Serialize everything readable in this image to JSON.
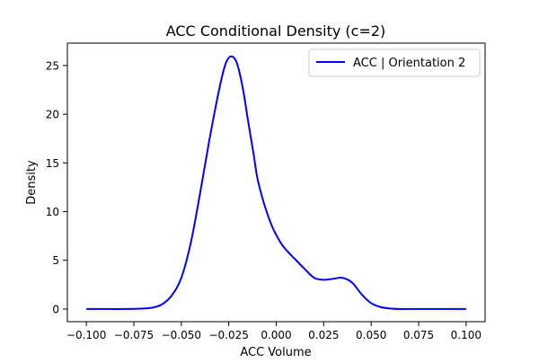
{
  "chart_data": {
    "type": "line",
    "title": "ACC Conditional Density (c=2)",
    "xlabel": "ACC Volume",
    "ylabel": "Density",
    "xlim": [
      -0.11,
      0.11
    ],
    "ylim": [
      -1.3,
      27.3
    ],
    "x_ticks": [
      -0.1,
      -0.075,
      -0.05,
      -0.025,
      0.0,
      0.025,
      0.05,
      0.075,
      0.1
    ],
    "x_tick_labels": [
      "−0.100",
      "−0.075",
      "−0.050",
      "−0.025",
      "0.000",
      "0.025",
      "0.050",
      "0.075",
      "0.100"
    ],
    "y_ticks": [
      0,
      5,
      10,
      15,
      20,
      25
    ],
    "y_tick_labels": [
      "0",
      "5",
      "10",
      "15",
      "20",
      "25"
    ],
    "grid": false,
    "legend_placement": "top-right",
    "series": [
      {
        "name": "ACC | Orientation 2",
        "color": "#0000ff",
        "x": [
          -0.1,
          -0.09,
          -0.08,
          -0.07,
          -0.065,
          -0.06,
          -0.055,
          -0.05,
          -0.045,
          -0.04,
          -0.035,
          -0.03,
          -0.027,
          -0.025,
          -0.023,
          -0.021,
          -0.019,
          -0.017,
          -0.015,
          -0.012,
          -0.01,
          -0.007,
          -0.004,
          -0.002,
          0.0,
          0.003,
          0.006,
          0.01,
          0.015,
          0.02,
          0.025,
          0.03,
          0.035,
          0.04,
          0.045,
          0.05,
          0.055,
          0.06,
          0.065,
          0.07,
          0.08,
          0.09,
          0.1
        ],
        "values": [
          0.0,
          0.0,
          0.0,
          0.05,
          0.15,
          0.5,
          1.4,
          3.2,
          6.8,
          12.0,
          17.6,
          22.6,
          25.0,
          25.8,
          25.9,
          25.4,
          24.0,
          22.0,
          19.5,
          16.0,
          13.5,
          11.2,
          9.4,
          8.4,
          7.6,
          6.6,
          5.9,
          5.1,
          4.1,
          3.2,
          3.0,
          3.1,
          3.2,
          2.7,
          1.5,
          0.6,
          0.2,
          0.05,
          0.0,
          0.0,
          0.0,
          0.0,
          0.0
        ]
      }
    ]
  }
}
